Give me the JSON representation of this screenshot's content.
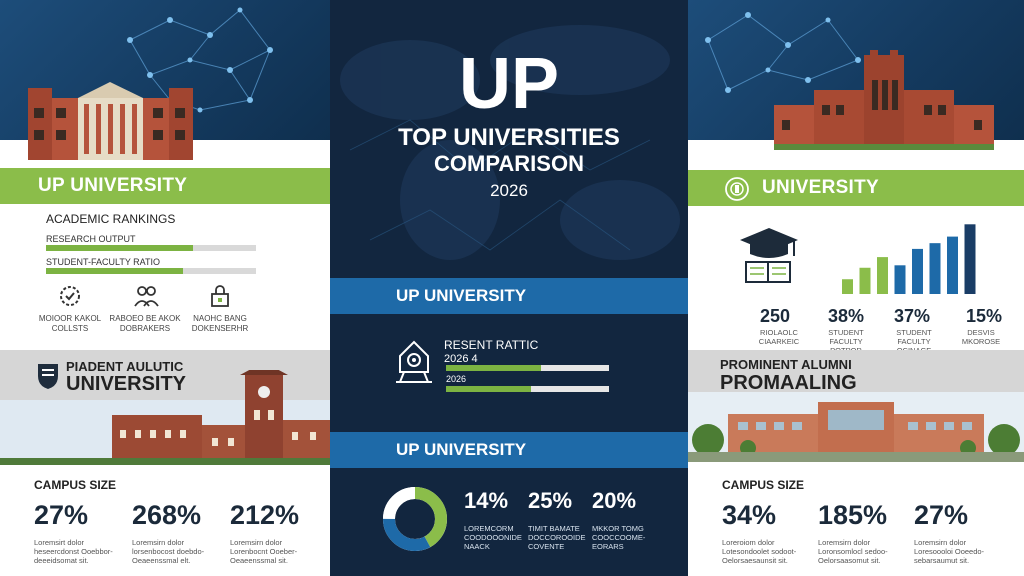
{
  "center": {
    "hero_title": "UP",
    "subtitle_line1": "TOP UNIVERSITIES",
    "subtitle_line2": "COMPARISON",
    "year": "2026",
    "band1": "UP UNIVERSITY",
    "ratio_title": "RESENT RATTIC",
    "ratio_row1": "2026 4",
    "ratio_row2": "2026",
    "ratio_fills": [
      0.58,
      0.52
    ],
    "band2": "UP UNIVERSITY",
    "stats": [
      {
        "value": "14%",
        "desc": "LOREMCORM COODOOONIDE NAACK"
      },
      {
        "value": "25%",
        "desc": "TIMIT BAMATE DOCCOROOIDE COVENTE"
      },
      {
        "value": "20%",
        "desc": "MKKOR TOMG COOCCOOME- EORARS"
      }
    ],
    "donut": [
      0.42,
      0.33,
      0.25
    ],
    "colors": {
      "bg": "#12263f",
      "band": "#1e6aa8",
      "green": "#8bbd4a",
      "blue": "#1e6aa8"
    }
  },
  "left": {
    "header": "UP UNIVERSITY",
    "rankings_title": "ACADEMIC RANKINGS",
    "bars": [
      {
        "label": "RESEARCH OUTPUT",
        "fill": 0.7
      },
      {
        "label": "STUDENT-FACULTY RATIO",
        "fill": 0.65
      }
    ],
    "icons": [
      {
        "icon": "gear-check-icon",
        "label": "MOIOOR KAKOL COLLSTS"
      },
      {
        "icon": "people-icon",
        "label": "RABOEO BE AKOK DOBRAKERS"
      },
      {
        "icon": "lock-icon",
        "label": "NAOHC BANG DOKENSERHR"
      }
    ],
    "section2_line1": "PIADENT AULUTIC",
    "section2_line2": "UNIVERSITY",
    "campus_title": "CAMPUS SIZE",
    "stats": [
      {
        "value": "27%",
        "desc": "Loremsirt dolor heseercdonst Ooebbor- deeeidsomat sit."
      },
      {
        "value": "268%",
        "desc": "Loremsirn dolor lorsenbocost doebdo- Oeaeenssmal elt."
      },
      {
        "value": "212%",
        "desc": "Loremsirn dolor Lorenbocnt Ooeber- Oeaeenssmal sit."
      }
    ]
  },
  "right": {
    "header": "UNIVERSITY",
    "chart_values": [
      0.18,
      0.32,
      0.45,
      0.35,
      0.55,
      0.62,
      0.7,
      0.85
    ],
    "stats": [
      {
        "value": "250",
        "desc": "RIOLAOLC CIAARKEIC"
      },
      {
        "value": "38%",
        "desc": "STUDENT FACULTY POTPOR"
      },
      {
        "value": "37%",
        "desc": "STUDENT FACULTY OCINAGE"
      },
      {
        "value": "15%",
        "desc": "DESVIS MKOROSE"
      }
    ],
    "alumni_line1": "PROMINENT ALUMNI",
    "alumni_line2": "PROMAALING",
    "campus_title": "CAMPUS SIZE",
    "campus_stats": [
      {
        "value": "34%",
        "desc": "Loreroiom dolor Lotesondoolet sodoot- Oelorsaesaunsit sit."
      },
      {
        "value": "185%",
        "desc": "Loremsirn dolor Loronsomlocl sedoo- Oelorsaasomut sit."
      },
      {
        "value": "27%",
        "desc": "Loremsirn dolor Loresoooloi Ooeedo- sebarsaumut sit."
      }
    ]
  }
}
